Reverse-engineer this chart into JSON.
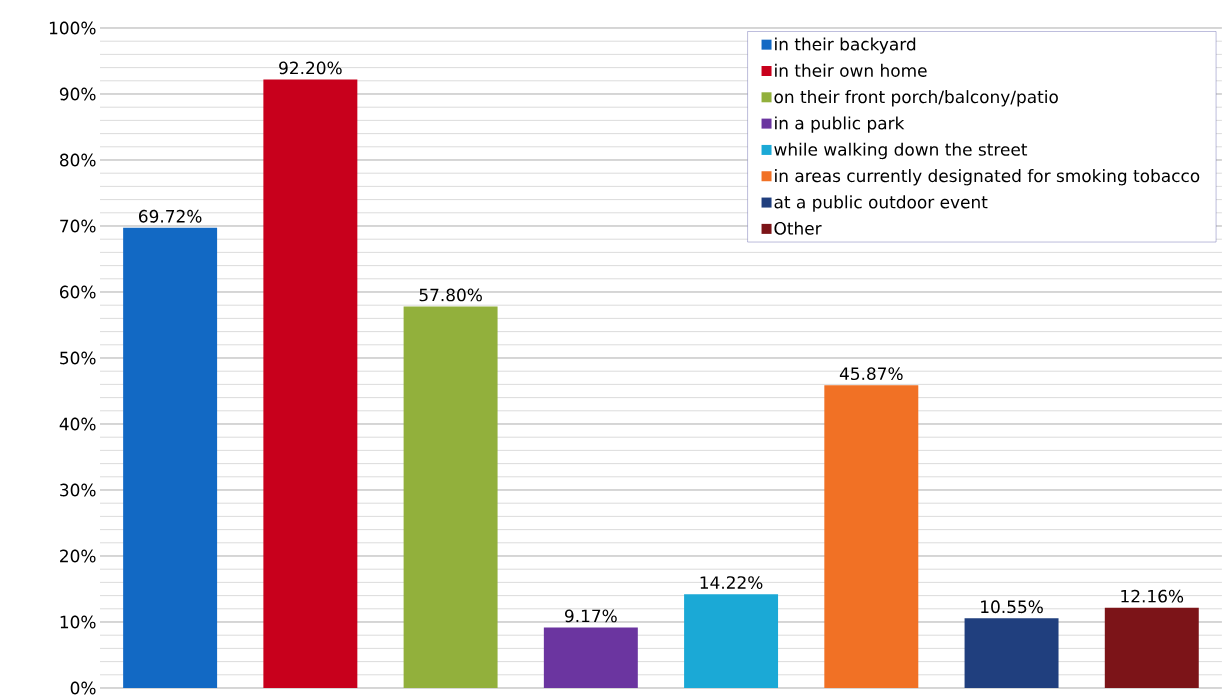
{
  "chart_data": {
    "type": "bar",
    "categories": [
      null,
      null,
      null,
      null,
      null,
      null,
      null,
      null
    ],
    "series": [
      {
        "name": "in their backyard",
        "color": "#1269c4",
        "values": [
          69.72,
          null,
          null,
          null,
          null,
          null,
          null,
          null
        ],
        "value_labels": [
          "69.72%",
          null,
          null,
          null,
          null,
          null,
          null,
          null
        ]
      },
      {
        "name": "in their own home",
        "color": "#c8001c",
        "values": [
          null,
          92.2,
          null,
          null,
          null,
          null,
          null,
          null
        ],
        "value_labels": [
          null,
          "92.20%",
          null,
          null,
          null,
          null,
          null,
          null
        ]
      },
      {
        "name": "on their front porch/balcony/patio",
        "color": "#92b03c",
        "values": [
          null,
          null,
          57.8,
          null,
          null,
          null,
          null,
          null
        ],
        "value_labels": [
          null,
          null,
          "57.80%",
          null,
          null,
          null,
          null,
          null
        ]
      },
      {
        "name": "in a public park",
        "color": "#6b35a0",
        "values": [
          null,
          null,
          null,
          9.17,
          null,
          null,
          null,
          null
        ],
        "value_labels": [
          null,
          null,
          null,
          "9.17%",
          null,
          null,
          null,
          null
        ]
      },
      {
        "name": "while walking down the street",
        "color": "#1ba9d6",
        "values": [
          null,
          null,
          null,
          null,
          14.22,
          null,
          null,
          null
        ],
        "value_labels": [
          null,
          null,
          null,
          null,
          "14.22%",
          null,
          null,
          null
        ]
      },
      {
        "name": "in areas currently designated for smoking tobacco",
        "color": "#f17125",
        "values": [
          null,
          null,
          null,
          null,
          null,
          45.87,
          null,
          null
        ],
        "value_labels": [
          null,
          null,
          null,
          null,
          null,
          "45.87%",
          null,
          null
        ]
      },
      {
        "name": "at a public outdoor event",
        "color": "#203f7e",
        "values": [
          null,
          null,
          null,
          null,
          null,
          null,
          10.55,
          null
        ],
        "value_labels": [
          null,
          null,
          null,
          null,
          null,
          null,
          "10.55%",
          null
        ]
      },
      {
        "name": "Other",
        "color": "#7c1418",
        "values": [
          null,
          null,
          null,
          null,
          null,
          null,
          null,
          12.16
        ],
        "value_labels": [
          null,
          null,
          null,
          null,
          null,
          null,
          null,
          "12.16%"
        ]
      }
    ],
    "ylim": [
      0,
      100
    ],
    "yticks": [
      {
        "value": 0,
        "label": "0%"
      },
      {
        "value": 10,
        "label": "10%"
      },
      {
        "value": 20,
        "label": "20%"
      },
      {
        "value": 30,
        "label": "30%"
      },
      {
        "value": 40,
        "label": "40%"
      },
      {
        "value": 50,
        "label": "50%"
      },
      {
        "value": 60,
        "label": "60%"
      },
      {
        "value": 70,
        "label": "70%"
      },
      {
        "value": 80,
        "label": "80%"
      },
      {
        "value": 90,
        "label": "90%"
      },
      {
        "value": 100,
        "label": "100%"
      }
    ],
    "grid": "y",
    "legend": "top right",
    "tick_labels": "y"
  }
}
